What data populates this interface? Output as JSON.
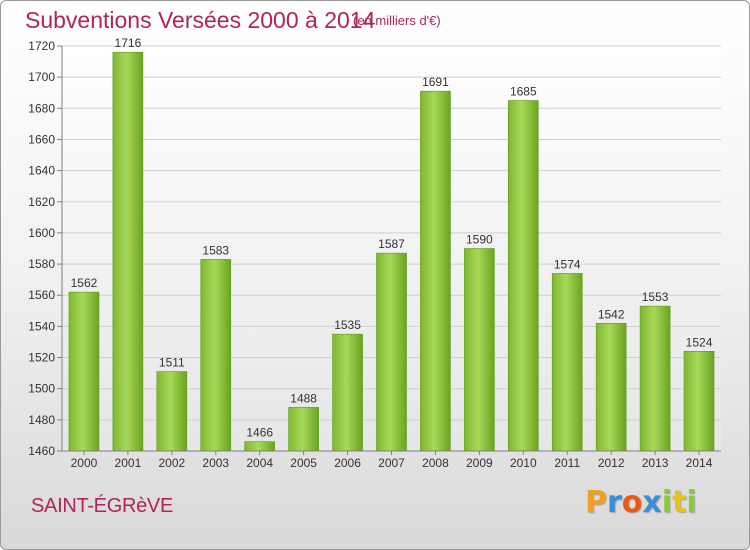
{
  "header": {
    "title": "Subventions Versées 2000 à 2014",
    "subtitle": "(en milliers d'€)"
  },
  "footer": {
    "place": "SAINT-ÉGRèVE",
    "logo": [
      "P",
      "r",
      "o",
      "x",
      "i",
      "t",
      "i"
    ]
  },
  "colors": {
    "title": "#b0245a",
    "bar_light": "#a6d655",
    "bar_dark": "#6aa420",
    "axis": "#808080",
    "grid": "#cfcfcf"
  },
  "chart_data": {
    "type": "bar",
    "title": "Subventions Versées 2000 à 2014",
    "subtitle": "(en milliers d'€)",
    "categories": [
      "2000",
      "2001",
      "2002",
      "2003",
      "2004",
      "2005",
      "2006",
      "2007",
      "2008",
      "2009",
      "2010",
      "2011",
      "2012",
      "2013",
      "2014"
    ],
    "values": [
      1562,
      1716,
      1511,
      1583,
      1466,
      1488,
      1535,
      1587,
      1691,
      1590,
      1685,
      1574,
      1542,
      1553,
      1524
    ],
    "ylim": [
      1460,
      1720
    ],
    "yticks": [
      1460,
      1480,
      1500,
      1520,
      1540,
      1560,
      1580,
      1600,
      1620,
      1640,
      1660,
      1680,
      1700,
      1720
    ],
    "grid": true,
    "legend": "none"
  }
}
